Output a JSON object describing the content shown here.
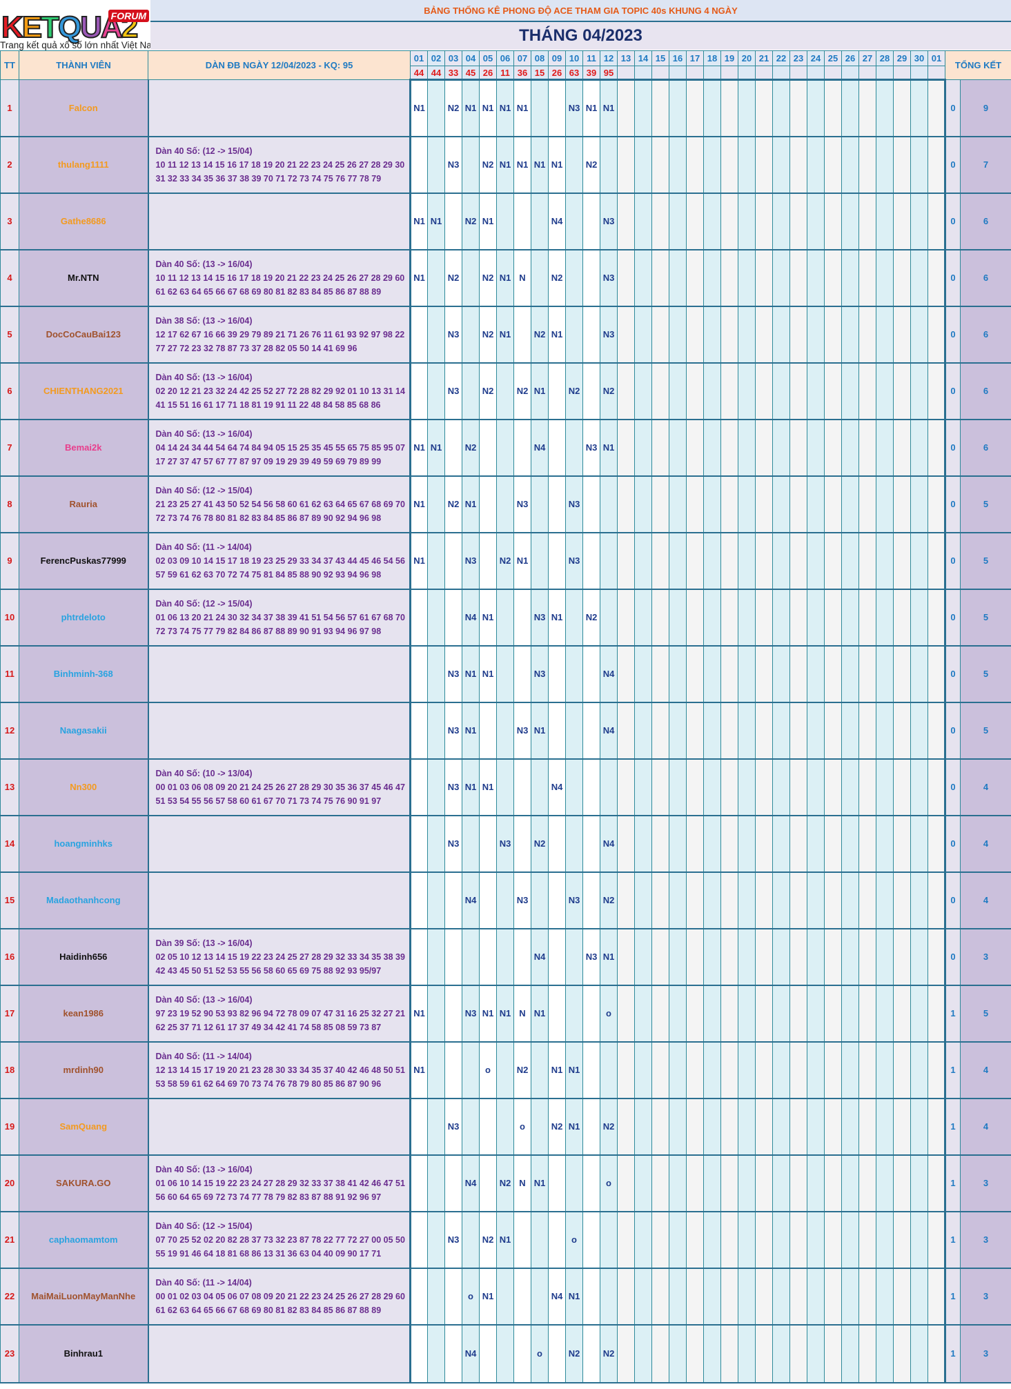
{
  "logo": {
    "letters": [
      "K",
      "E",
      "T",
      "Q",
      "U",
      "A",
      "2"
    ],
    "letter_colors": [
      "#e31b23",
      "#f39c12",
      "#2ecc71",
      "#3498db",
      "#9b59b6",
      "#e84393",
      "#f1c40f"
    ],
    "tag": "FORUM",
    "slogan": "Trang kết quả xổ số lớn nhất Việt Nam"
  },
  "top_title": "BẢNG THỐNG KÊ PHONG ĐỘ ACE THAM GIA TOPIC 40s KHUNG 4 NGÀY",
  "month_title": "THÁNG 04/2023",
  "header": {
    "tt": "TT",
    "member": "THÀNH VIÊN",
    "dan": "DÀN ĐB NGÀY 12/04/2023 - KQ: 95",
    "total": "TỔNG KẾT",
    "days": [
      "01",
      "02",
      "03",
      "04",
      "05",
      "06",
      "07",
      "08",
      "09",
      "10",
      "11",
      "12",
      "13",
      "14",
      "15",
      "16",
      "17",
      "18",
      "19",
      "20",
      "21",
      "22",
      "23",
      "24",
      "25",
      "26",
      "27",
      "28",
      "29",
      "30",
      "01"
    ],
    "results": [
      "44",
      "44",
      "33",
      "45",
      "26",
      "11",
      "36",
      "15",
      "26",
      "63",
      "39",
      "95",
      "",
      "",
      "",
      "",
      "",
      "",
      "",
      "",
      "",
      "",
      "",
      "",
      "",
      "",
      "",
      "",
      "",
      "",
      ""
    ]
  },
  "rows": [
    {
      "tt": "1",
      "name": "Falcon",
      "color": "#f39a1f",
      "dan": [
        "",
        ""
      ],
      "cells": {
        "1": "N1",
        "3": "N2",
        "4": "N1",
        "5": "N1",
        "6": "N1",
        "7": "N1",
        "10": "N3",
        "11": "N1",
        "12": "N1"
      },
      "t1": "0",
      "t2": "9"
    },
    {
      "tt": "2",
      "name": "thulang1111",
      "color": "#f39a1f",
      "dan": [
        "Dàn 40 Số: (12 -> 15/04)",
        "10 11 12 13 14 15 16 17 18 19 20 21 22 23 24 25 26 27 28 29 30",
        "31 32 33 34 35 36 37 38 39 70 71 72 73 74 75 76 77 78 79"
      ],
      "cells": {
        "3": "N3",
        "5": "N2",
        "6": "N1",
        "7": "N1",
        "8": "N1",
        "9": "N1",
        "11": "N2"
      },
      "t1": "0",
      "t2": "7"
    },
    {
      "tt": "3",
      "name": "Gathe8686",
      "color": "#f39a1f",
      "dan": [
        "",
        ""
      ],
      "cells": {
        "1": "N1",
        "2": "N1",
        "4": "N2",
        "5": "N1",
        "9": "N4",
        "12": "N3"
      },
      "t1": "0",
      "t2": "6"
    },
    {
      "tt": "4",
      "name": "Mr.NTN",
      "color": "#111111",
      "dan": [
        "Dàn 40 Số: (13 -> 16/04)",
        "10 11 12 13 14 15 16 17 18 19 20 21 22 23 24 25 26 27 28 29 60",
        "61 62 63 64 65 66 67 68 69 80 81 82 83 84 85 86 87 88 89"
      ],
      "cells": {
        "1": "N1",
        "3": "N2",
        "5": "N2",
        "6": "N1",
        "7": "N",
        "9": "N2",
        "12": "N3"
      },
      "t1": "0",
      "t2": "6"
    },
    {
      "tt": "5",
      "name": "DocCoCauBai123",
      "color": "#a0522d",
      "dan": [
        "Dàn 38 Số: (13 -> 16/04)",
        "12 17 62 67 16 66 39 29 79 89 21 71 26 76 11 61 93 92 97 98 22",
        "77 27 72 23 32 78 87 73 37 28 82 05 50 14 41 69 96"
      ],
      "cells": {
        "3": "N3",
        "5": "N2",
        "6": "N1",
        "8": "N2",
        "9": "N1",
        "12": "N3"
      },
      "t1": "0",
      "t2": "6"
    },
    {
      "tt": "6",
      "name": "CHIENTHANG2021",
      "color": "#f39a1f",
      "dan": [
        "Dàn 40 Số: (13 -> 16/04)",
        "02 20 12 21 23 32 24 42 25 52 27 72 28 82 29 92 01 10 13 31 14",
        "41 15 51 16 61 17 71 18 81 19 91 11 22 48 84 58 85 68 86"
      ],
      "cells": {
        "3": "N3",
        "5": "N2",
        "7": "N2",
        "8": "N1",
        "10": "N2",
        "12": "N2"
      },
      "t1": "0",
      "t2": "6"
    },
    {
      "tt": "7",
      "name": "Bemai2k",
      "color": "#e83e8c",
      "dan": [
        "Dàn 40 Số: (13 -> 16/04)",
        "04 14 24 34 44 54 64 74 84 94 05 15 25 35 45 55 65 75 85 95 07",
        "17 27 37 47 57 67 77 87 97 09 19 29 39 49 59 69 79 89 99"
      ],
      "cells": {
        "1": "N1",
        "2": "N1",
        "4": "N2",
        "8": "N4",
        "11": "N3",
        "12": "N1"
      },
      "t1": "0",
      "t2": "6"
    },
    {
      "tt": "8",
      "name": "Rauria",
      "color": "#a0522d",
      "dan": [
        "Dàn 40 Số: (12 -> 15/04)",
        "21 23 25 27 41 43 50 52 54 56 58 60 61 62 63 64 65 67 68 69 70",
        "72 73 74 76 78 80 81 82 83 84 85 86 87 89 90 92 94 96 98"
      ],
      "cells": {
        "1": "N1",
        "3": "N2",
        "4": "N1",
        "7": "N3",
        "10": "N3"
      },
      "t1": "0",
      "t2": "5"
    },
    {
      "tt": "9",
      "name": "FerencPuskas77999",
      "color": "#111111",
      "dan": [
        "Dàn 40 Số: (11 -> 14/04)",
        "02 03 09 10 14 15 17 18 19 23 25 29 33 34 37 43 44 45 46 54 56",
        "57 59 61 62 63 70 72 74 75 81 84 85 88 90 92 93 94 96 98"
      ],
      "cells": {
        "1": "N1",
        "4": "N3",
        "6": "N2",
        "7": "N1",
        "10": "N3"
      },
      "t1": "0",
      "t2": "5"
    },
    {
      "tt": "10",
      "name": "phtrdeloto",
      "color": "#29a3e0",
      "dan": [
        "Dàn 40 Số: (12 -> 15/04)",
        "01 06 13 20 21 24 30 32 34 37 38 39 41 51 54 56 57 61 67 68 70",
        "72 73 74 75 77 79 82 84 86 87 88 89 90 91 93 94 96 97 98"
      ],
      "cells": {
        "4": "N4",
        "5": "N1",
        "8": "N3",
        "9": "N1",
        "11": "N2"
      },
      "t1": "0",
      "t2": "5"
    },
    {
      "tt": "11",
      "name": "Binhminh-368",
      "color": "#29a3e0",
      "dan": [
        "",
        ""
      ],
      "cells": {
        "3": "N3",
        "4": "N1",
        "5": "N1",
        "8": "N3",
        "12": "N4"
      },
      "t1": "0",
      "t2": "5"
    },
    {
      "tt": "12",
      "name": "Naagasakii",
      "color": "#29a3e0",
      "dan": [
        "",
        ""
      ],
      "cells": {
        "3": "N3",
        "4": "N1",
        "7": "N3",
        "8": "N1",
        "12": "N4"
      },
      "t1": "0",
      "t2": "5"
    },
    {
      "tt": "13",
      "name": "Nn300",
      "color": "#f39a1f",
      "dan": [
        "Dàn 40 Số: (10 -> 13/04)",
        "00 01 03 06 08 09 20 21 24 25 26 27 28 29 30 35 36 37 45 46 47",
        "51 53 54 55 56 57 58 60 61 67 70 71 73 74 75 76 90 91 97"
      ],
      "cells": {
        "3": "N3",
        "4": "N1",
        "5": "N1",
        "9": "N4"
      },
      "t1": "0",
      "t2": "4"
    },
    {
      "tt": "14",
      "name": "hoangminhks",
      "color": "#29a3e0",
      "dan": [
        "",
        ""
      ],
      "cells": {
        "3": "N3",
        "6": "N3",
        "8": "N2",
        "12": "N4"
      },
      "t1": "0",
      "t2": "4"
    },
    {
      "tt": "15",
      "name": "Madaothanhcong",
      "color": "#29a3e0",
      "dan": [
        "",
        ""
      ],
      "cells": {
        "4": "N4",
        "7": "N3",
        "10": "N3",
        "12": "N2"
      },
      "t1": "0",
      "t2": "4"
    },
    {
      "tt": "16",
      "name": "Haidinh656",
      "color": "#111111",
      "dan": [
        "Dàn 39 Số: (13 -> 16/04)",
        "02 05 10 12 13 14 15 19 22 23 24 25 27 28 29 32 33 34 35 38 39",
        "42 43 45 50 51 52 53 55 56 58 60 65 69 75 88 92 93 95/97"
      ],
      "cells": {
        "8": "N4",
        "11": "N3",
        "12": "N1"
      },
      "t1": "0",
      "t2": "3"
    },
    {
      "tt": "17",
      "name": "kean1986",
      "color": "#a0522d",
      "dan": [
        "Dàn 40 Số: (13 -> 16/04)",
        "97 23 19 52 90 53 93 82 96 94 72 78 09 07 47 31 16 25 32 27 21",
        "62 25 37 71 12 61 17 37 49 34 42 41 74 58 85 08 59 73 87"
      ],
      "cells": {
        "1": "N1",
        "4": "N3",
        "5": "N1",
        "6": "N1",
        "7": "N",
        "8": "N1",
        "12": "o"
      },
      "t1": "1",
      "t2": "5"
    },
    {
      "tt": "18",
      "name": "mrdinh90",
      "color": "#a0522d",
      "dan": [
        "Dàn 40 Số: (11 -> 14/04)",
        "12 13 14 15 17 19 20 21 23 28 30 33 34 35 37 40 42 46 48 50 51",
        "53 58 59 61 62 64 69 70 73 74 76 78 79 80 85 86 87 90 96"
      ],
      "cells": {
        "1": "N1",
        "5": "o",
        "7": "N2",
        "9": "N1",
        "10": "N1"
      },
      "t1": "1",
      "t2": "4"
    },
    {
      "tt": "19",
      "name": "SamQuang",
      "color": "#f39a1f",
      "dan": [
        "",
        ""
      ],
      "cells": {
        "3": "N3",
        "7": "o",
        "9": "N2",
        "10": "N1",
        "12": "N2"
      },
      "t1": "1",
      "t2": "4"
    },
    {
      "tt": "20",
      "name": "SAKURA.GO",
      "color": "#a0522d",
      "dan": [
        "Dàn 40 Số: (13 -> 16/04)",
        "01 06 10 14 15 19 22 23 24 27 28 29 32 33 37 38 41 42 46 47 51",
        "56 60 64 65 69 72 73 74 77 78 79 82 83 87 88 91 92 96 97"
      ],
      "cells": {
        "4": "N4",
        "6": "N2",
        "7": "N",
        "8": "N1",
        "12": "o"
      },
      "t1": "1",
      "t2": "3"
    },
    {
      "tt": "21",
      "name": "caphaomamtom",
      "color": "#29a3e0",
      "dan": [
        "Dàn 40 Số: (12 -> 15/04)",
        "07 70 25 52 02 20 82 28 37 73 32 23 87 78 22 77 72 27 00 05 50",
        "55 19 91 46 64 18 81 68 86 13 31 36 63 04 40 09 90 17 71"
      ],
      "cells": {
        "3": "N3",
        "5": "N2",
        "6": "N1",
        "10": "o"
      },
      "t1": "1",
      "t2": "3"
    },
    {
      "tt": "22",
      "name": "MaiMaiLuonMayManNhe",
      "color": "#a0522d",
      "dan": [
        "Dàn 40 Số: (11 -> 14/04)",
        "00 01 02 03 04 05 06 07 08 09 20 21 22 23 24 25 26 27 28 29 60",
        "61 62 63 64 65 66 67 68 69 80 81 82 83 84 85 86 87 88 89"
      ],
      "cells": {
        "4": "o",
        "5": "N1",
        "9": "N4",
        "10": "N1"
      },
      "t1": "1",
      "t2": "3"
    },
    {
      "tt": "23",
      "name": "Binhrau1",
      "color": "#111111",
      "dan": [
        "",
        ""
      ],
      "cells": {
        "4": "N4",
        "8": "o",
        "10": "N2",
        "12": "N2"
      },
      "t1": "1",
      "t2": "3"
    }
  ]
}
